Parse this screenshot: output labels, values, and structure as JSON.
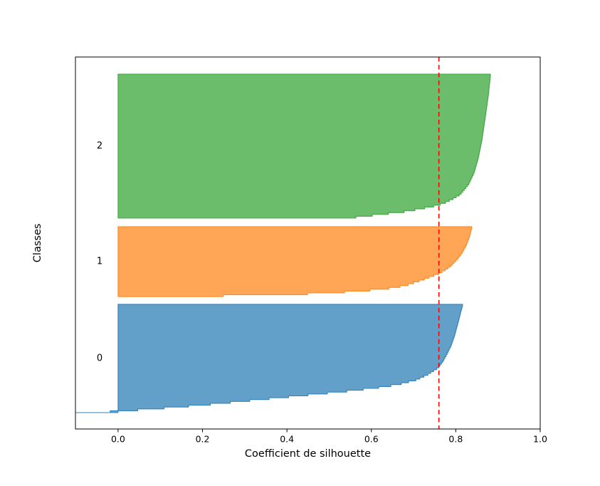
{
  "figure": {
    "background": "#ffffff",
    "border_color": "#000000"
  },
  "chart_data": {
    "type": "area",
    "variant": "silhouette-plot",
    "title": "",
    "xlabel": "Coefficient de silhouette",
    "ylabel": "Classes",
    "xlim": [
      -0.101,
      1.0
    ],
    "xticks": [
      0.0,
      0.2,
      0.4,
      0.6,
      0.8,
      1.0
    ],
    "xtick_labels": [
      "0.0",
      "0.2",
      "0.4",
      "0.6",
      "0.8",
      "1.0"
    ],
    "yticks": [],
    "grid": false,
    "legend": null,
    "avg_silhouette_line": {
      "value": 0.76,
      "color": "#ff0000",
      "style": "dashed"
    },
    "clusters": [
      {
        "label": "0",
        "fill_color": "#62A0CA",
        "edge_color": "#3383BB",
        "y_frac_top": 0.665,
        "y_frac_bottom": 0.956,
        "min_value": -0.101,
        "max_value": 0.816,
        "profile": [
          [
            0.0,
            -0.101
          ],
          [
            0.012,
            -0.045
          ],
          [
            0.022,
            0.005
          ],
          [
            0.04,
            0.065
          ],
          [
            0.06,
            0.14
          ],
          [
            0.09,
            0.23
          ],
          [
            0.12,
            0.31
          ],
          [
            0.15,
            0.39
          ],
          [
            0.18,
            0.47
          ],
          [
            0.21,
            0.55
          ],
          [
            0.24,
            0.615
          ],
          [
            0.27,
            0.665
          ],
          [
            0.31,
            0.705
          ],
          [
            0.36,
            0.733
          ],
          [
            0.42,
            0.757
          ],
          [
            0.48,
            0.769
          ],
          [
            0.55,
            0.779
          ],
          [
            0.63,
            0.789
          ],
          [
            0.72,
            0.797
          ],
          [
            0.82,
            0.804
          ],
          [
            0.91,
            0.81
          ],
          [
            1.0,
            0.816
          ]
        ]
      },
      {
        "label": "1",
        "fill_color": "#FFA556",
        "edge_color": "#FF8A24",
        "y_frac_top": 0.456,
        "y_frac_bottom": 0.644,
        "min_value": 0.06,
        "max_value": 0.838,
        "profile": [
          [
            0.0,
            0.06
          ],
          [
            0.02,
            0.19
          ],
          [
            0.035,
            0.33
          ],
          [
            0.05,
            0.44
          ],
          [
            0.08,
            0.54
          ],
          [
            0.12,
            0.63
          ],
          [
            0.17,
            0.68
          ],
          [
            0.21,
            0.7
          ],
          [
            0.25,
            0.72
          ],
          [
            0.29,
            0.737
          ],
          [
            0.34,
            0.759
          ],
          [
            0.39,
            0.774
          ],
          [
            0.45,
            0.788
          ],
          [
            0.54,
            0.802
          ],
          [
            0.64,
            0.815
          ],
          [
            0.75,
            0.825
          ],
          [
            0.88,
            0.833
          ],
          [
            1.0,
            0.838
          ]
        ]
      },
      {
        "label": "2",
        "fill_color": "#6BBC6B",
        "edge_color": "#3FA83F",
        "y_frac_top": 0.046,
        "y_frac_bottom": 0.433,
        "min_value": 0.51,
        "max_value": 0.882,
        "profile": [
          [
            0.0,
            0.51
          ],
          [
            0.01,
            0.555
          ],
          [
            0.03,
            0.615
          ],
          [
            0.05,
            0.675
          ],
          [
            0.07,
            0.715
          ],
          [
            0.09,
            0.748
          ],
          [
            0.11,
            0.772
          ],
          [
            0.14,
            0.793
          ],
          [
            0.17,
            0.81
          ],
          [
            0.24,
            0.83
          ],
          [
            0.32,
            0.843
          ],
          [
            0.42,
            0.853
          ],
          [
            0.55,
            0.862
          ],
          [
            0.71,
            0.87
          ],
          [
            0.88,
            0.878
          ],
          [
            1.0,
            0.882
          ]
        ]
      }
    ]
  }
}
